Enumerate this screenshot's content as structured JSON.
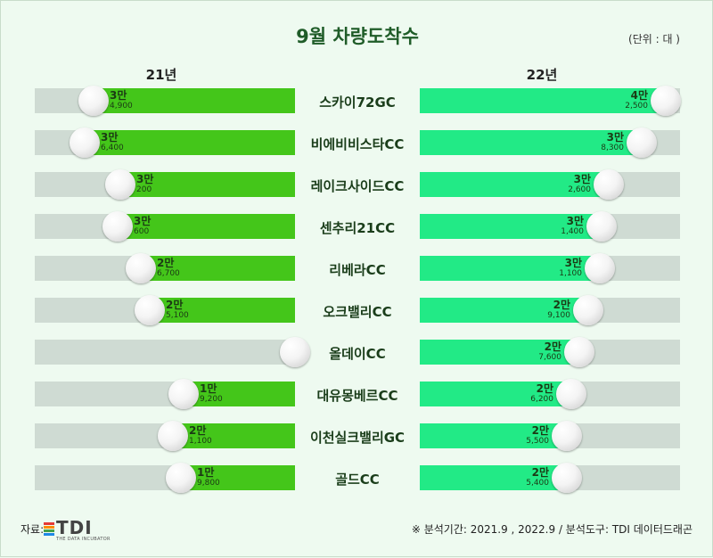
{
  "title": "9월 차량도착수",
  "unit_note": "(단위 : 대 )",
  "year_left": "21년",
  "year_right": "22년",
  "source_label": "자료:",
  "logo": {
    "text": "TDI",
    "sub": "THE DATA INCUBATOR",
    "colors": [
      "#e53935",
      "#fb8c00",
      "#43a047",
      "#1e88e5"
    ]
  },
  "period_note": "※ 분석기간: 2021.9 , 2022.9 / 분석도구: TDI 데이터드래곤",
  "colors": {
    "fill_2021": "#44c61a",
    "fill_2022": "#22ea86",
    "track": "#cfdbd3"
  },
  "chart_data": {
    "type": "bar",
    "orientation": "horizontal-butterfly",
    "categories": [
      "스카이72GC",
      "비에비비스타CC",
      "레이크사이드CC",
      "센추리21CC",
      "리베라CC",
      "오크밸리CC",
      "올데이CC",
      "대유몽베르CC",
      "이천실크밸리GC",
      "골드CC"
    ],
    "series": [
      {
        "name": "21년",
        "values": [
          34900,
          36400,
          30200,
          30600,
          26700,
          25100,
          0,
          19200,
          21100,
          19800
        ],
        "labels_big": [
          "3만",
          "3만",
          "3만",
          "3만",
          "2만",
          "2만",
          "",
          "1만",
          "2만",
          "1만"
        ],
        "labels_small": [
          "4,900",
          "6,400",
          "200",
          "600",
          "6,700",
          "5,100",
          "",
          "9,200",
          "1,100",
          "9,800"
        ]
      },
      {
        "name": "22년",
        "values": [
          42500,
          38300,
          32600,
          31400,
          31100,
          29100,
          27600,
          26200,
          25500,
          25400
        ],
        "labels_big": [
          "4만",
          "3만",
          "3만",
          "3만",
          "3만",
          "2만",
          "2만",
          "2만",
          "2만",
          "2만"
        ],
        "labels_small": [
          "2,500",
          "8,300",
          "2,600",
          "1,400",
          "1,100",
          "9,100",
          "7,600",
          "6,200",
          "5,500",
          "5,400"
        ]
      }
    ],
    "xlim": [
      0,
      45000
    ]
  }
}
